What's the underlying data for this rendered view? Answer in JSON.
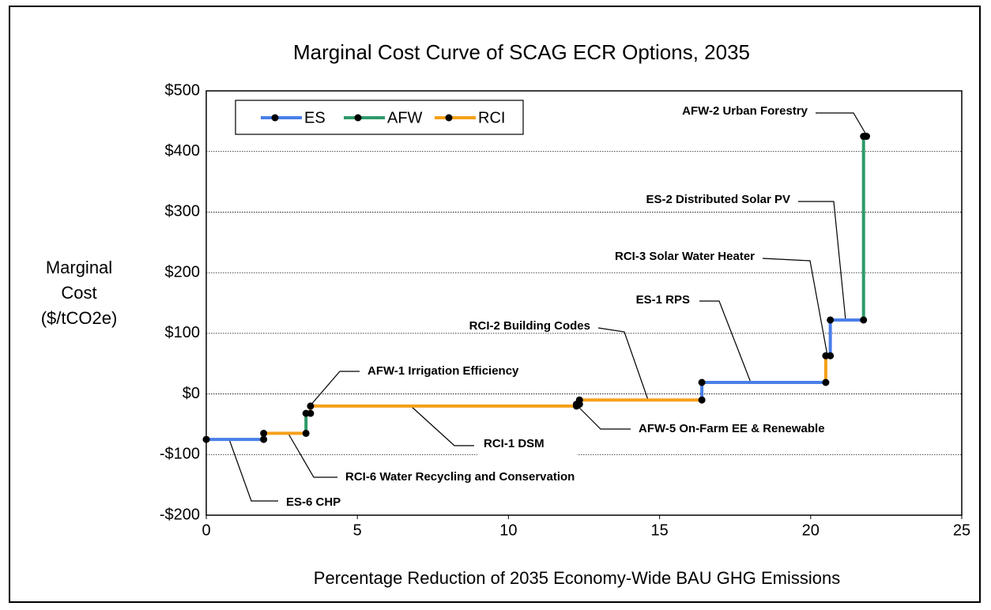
{
  "chart_data": {
    "type": "step",
    "title": "Marginal Cost Curve of SCAG ECR Options, 2035",
    "xlabel": "Percentage Reduction of 2035 Economy-Wide BAU GHG Emissions",
    "ylabel": [
      "Marginal",
      "Cost",
      "($/tCO2e)"
    ],
    "xlim": [
      0,
      25
    ],
    "xticks": [
      0,
      5,
      10,
      15,
      20,
      25
    ],
    "ylim": [
      -200,
      500
    ],
    "yticks": [
      {
        "value": -200,
        "label": "-$200"
      },
      {
        "value": -100,
        "label": "-$100"
      },
      {
        "value": 0,
        "label": "$0"
      },
      {
        "value": 100,
        "label": "$100"
      },
      {
        "value": 200,
        "label": "$200"
      },
      {
        "value": 300,
        "label": "$300"
      },
      {
        "value": 400,
        "label": "$400"
      },
      {
        "value": 500,
        "label": "$500"
      }
    ],
    "grid": true,
    "legend": "upper left",
    "series": [
      {
        "name": "ES",
        "color": "#4a7fe8",
        "labels": [
          "ES-6 CHP",
          "ES-1 RPS",
          "ES-2 Distributed Solar PV"
        ],
        "x_start": [
          0,
          16.4,
          20.65
        ],
        "x_end": [
          1.9,
          20.5,
          21.75
        ],
        "values": [
          -75,
          19,
          122
        ]
      },
      {
        "name": "AFW",
        "color": "#2e9a6a",
        "labels": [
          "AFW-1 Irrigation Efficiency",
          "AFW-5 On-Farm EE & Renewable",
          "AFW-2 Urban Forestry"
        ],
        "x_start": [
          3.3,
          12.25,
          21.75
        ],
        "x_end": [
          3.45,
          12.35,
          21.85
        ],
        "values": [
          -32,
          -17,
          425
        ]
      },
      {
        "name": "RCI",
        "color": "#f5a01a",
        "labels": [
          "RCI-6 Water Recycling and Conservation",
          "RCI-1 DSM",
          "RCI-2 Building Codes",
          "RCI-3 Solar Water Heater"
        ],
        "x_start": [
          1.9,
          3.45,
          12.35,
          20.5
        ],
        "x_end": [
          3.3,
          12.25,
          16.4,
          20.65
        ],
        "values": [
          -65,
          -20,
          -10,
          63
        ]
      }
    ]
  }
}
